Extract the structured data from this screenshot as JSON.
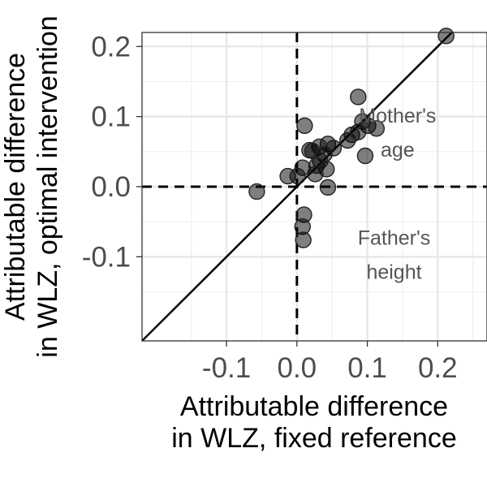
{
  "chart_data": {
    "type": "scatter",
    "xlabel": [
      "Attributable difference",
      "in WLZ, fixed reference"
    ],
    "ylabel": [
      "Attributable difference",
      "in WLZ, optimal intervention"
    ],
    "xlim": [
      -0.22,
      0.27
    ],
    "ylim": [
      -0.22,
      0.22
    ],
    "x_ticks": [
      -0.1,
      0.0,
      0.1,
      0.2
    ],
    "x_tick_labels": [
      "-0.1",
      "0.0",
      "0.1",
      "0.2"
    ],
    "y_ticks": [
      -0.1,
      0.0,
      0.1,
      0.2
    ],
    "y_tick_labels": [
      "-0.1",
      "0.0",
      "0.1",
      "0.2"
    ],
    "grid": true,
    "reference_lines": [
      "vertical dashed at x=0",
      "horizontal dashed at y=0",
      "identity line y=x"
    ],
    "annotations": [
      {
        "lines": [
          "Mother's",
          "age"
        ],
        "x": 0.143,
        "y": 0.082
      },
      {
        "lines": [
          "Father's",
          "height"
        ],
        "x": 0.138,
        "y": -0.092
      }
    ],
    "points": [
      {
        "x": 0.212,
        "y": 0.215
      },
      {
        "x": 0.087,
        "y": 0.128
      },
      {
        "x": 0.011,
        "y": 0.087
      },
      {
        "x": 0.093,
        "y": 0.093
      },
      {
        "x": 0.101,
        "y": 0.087
      },
      {
        "x": 0.113,
        "y": 0.083
      },
      {
        "x": 0.078,
        "y": 0.074
      },
      {
        "x": 0.072,
        "y": 0.066
      },
      {
        "x": 0.087,
        "y": 0.078
      },
      {
        "x": 0.044,
        "y": 0.061
      },
      {
        "x": 0.052,
        "y": 0.055
      },
      {
        "x": 0.032,
        "y": 0.057
      },
      {
        "x": 0.018,
        "y": 0.052
      },
      {
        "x": 0.022,
        "y": 0.051
      },
      {
        "x": 0.039,
        "y": 0.046
      },
      {
        "x": 0.033,
        "y": 0.037
      },
      {
        "x": 0.028,
        "y": 0.03
      },
      {
        "x": 0.042,
        "y": 0.025
      },
      {
        "x": 0.008,
        "y": 0.027
      },
      {
        "x": 0.026,
        "y": 0.018
      },
      {
        "x": -0.013,
        "y": 0.015
      },
      {
        "x": 0.001,
        "y": 0.015
      },
      {
        "x": 0.097,
        "y": 0.044
      },
      {
        "x": -0.057,
        "y": -0.007
      },
      {
        "x": 0.044,
        "y": -0.001
      },
      {
        "x": 0.01,
        "y": -0.04
      },
      {
        "x": 0.008,
        "y": -0.057
      },
      {
        "x": 0.009,
        "y": -0.076
      }
    ]
  }
}
